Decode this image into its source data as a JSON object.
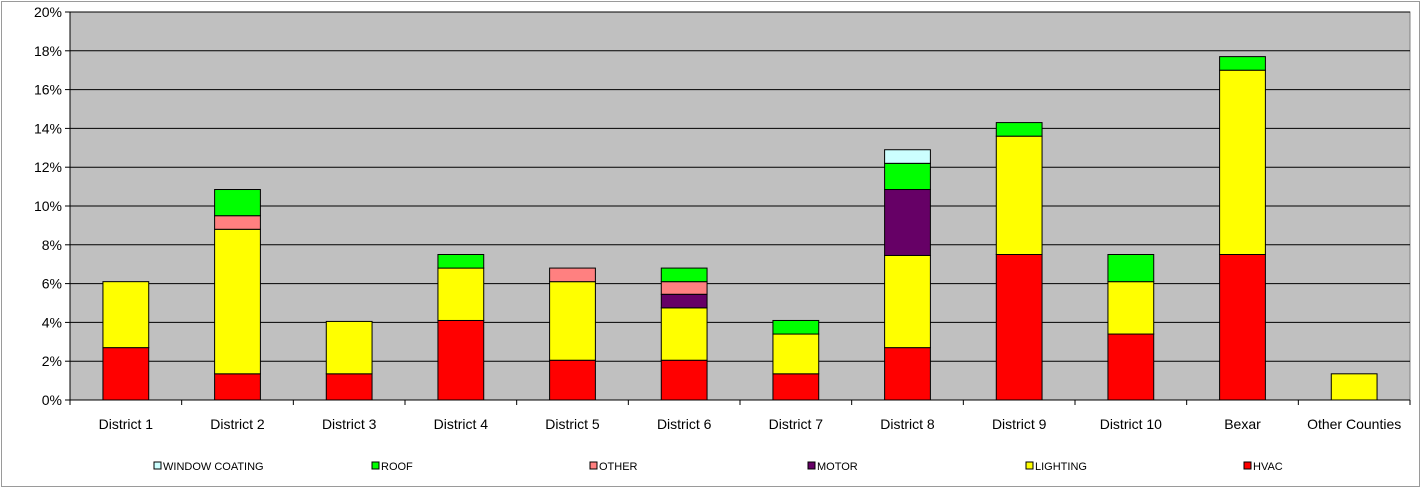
{
  "chart_data": {
    "type": "bar",
    "stacked": true,
    "categories": [
      "District 1",
      "District 2",
      "District 3",
      "District 4",
      "District 5",
      "District 6",
      "District 7",
      "District 8",
      "District 9",
      "District 10",
      "Bexar",
      "Other Counties"
    ],
    "ylim": [
      0,
      20
    ],
    "yticks": [
      "0%",
      "2%",
      "4%",
      "6%",
      "8%",
      "10%",
      "12%",
      "14%",
      "16%",
      "18%",
      "20%"
    ],
    "grid": true,
    "legend_position": "bottom",
    "series": [
      {
        "name": "HVAC",
        "color": "#ff0000",
        "values": [
          2.7,
          1.35,
          1.35,
          4.1,
          2.05,
          2.05,
          1.35,
          2.7,
          7.5,
          3.4,
          7.5,
          0
        ]
      },
      {
        "name": "LIGHTING",
        "color": "#ffff00",
        "values": [
          3.4,
          7.45,
          2.7,
          2.7,
          4.05,
          2.7,
          2.05,
          4.75,
          6.1,
          2.7,
          9.5,
          1.35
        ]
      },
      {
        "name": "MOTOR",
        "color": "#660066",
        "values": [
          0,
          0,
          0,
          0,
          0,
          0.7,
          0,
          3.4,
          0,
          0,
          0,
          0
        ]
      },
      {
        "name": "OTHER",
        "color": "#ff8080",
        "values": [
          0,
          0.7,
          0,
          0,
          0.7,
          0.65,
          0,
          0,
          0,
          0,
          0,
          0
        ]
      },
      {
        "name": "ROOF",
        "color": "#00ff00",
        "values": [
          0,
          1.35,
          0,
          0.7,
          0,
          0.7,
          0.7,
          1.35,
          0.7,
          1.4,
          0.7,
          0
        ]
      },
      {
        "name": "WINDOW COATING",
        "color": "#ccffff",
        "values": [
          0,
          0,
          0,
          0,
          0,
          0,
          0,
          0.7,
          0,
          0,
          0,
          0
        ]
      }
    ],
    "legend_order": [
      "WINDOW COATING",
      "ROOF",
      "OTHER",
      "MOTOR",
      "LIGHTING",
      "HVAC"
    ],
    "plot_background": "#c0c0c0"
  }
}
